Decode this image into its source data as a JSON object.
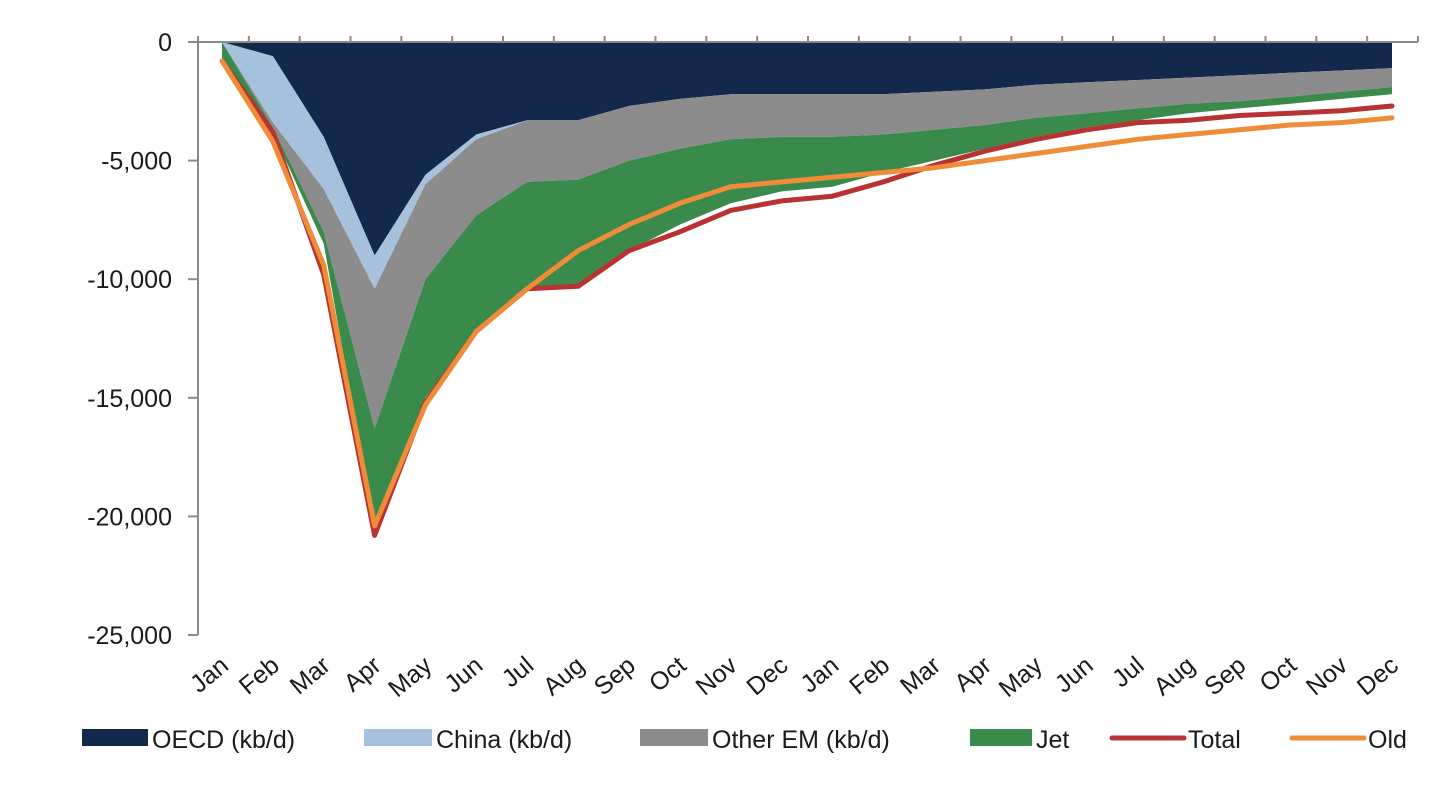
{
  "chart_data": {
    "type": "area",
    "title": "",
    "xlabel": "",
    "ylabel": "",
    "ylim": [
      -25000,
      0
    ],
    "yticks": [
      0,
      -5000,
      -10000,
      -15000,
      -20000,
      -25000
    ],
    "ytick_labels": [
      "0",
      "-5,000",
      "-10,000",
      "-15,000",
      "-20,000",
      "-25,000"
    ],
    "categories": [
      "Jan",
      "Feb",
      "Mar",
      "Apr",
      "May",
      "Jun",
      "Jul",
      "Aug",
      "Sep",
      "Oct",
      "Nov",
      "Dec",
      "Jan",
      "Feb",
      "Mar",
      "Apr",
      "May",
      "Jun",
      "Jul",
      "Aug",
      "Sep",
      "Oct",
      "Nov",
      "Dec"
    ],
    "grid": false,
    "legend_position": "bottom",
    "stacked_series": [
      {
        "name": "OECD (kb/d)",
        "color": "#13294b",
        "values": [
          0,
          -600,
          -4000,
          -9000,
          -5600,
          -3900,
          -3300,
          -3300,
          -2700,
          -2400,
          -2200,
          -2200,
          -2200,
          -2200,
          -2100,
          -2000,
          -1800,
          -1700,
          -1600,
          -1500,
          -1400,
          -1300,
          -1200,
          -1100
        ]
      },
      {
        "name": "China (kb/d)",
        "color": "#a6c1dc",
        "values": [
          0,
          -2800,
          -2200,
          -1400,
          -400,
          -200,
          0,
          0,
          0,
          0,
          0,
          0,
          0,
          0,
          0,
          0,
          0,
          0,
          0,
          0,
          0,
          0,
          0,
          0
        ]
      },
      {
        "name": "Other EM (kb/d)",
        "color": "#8c8c8c",
        "values": [
          0,
          -200,
          -1800,
          -5900,
          -4000,
          -3200,
          -2600,
          -2500,
          -2300,
          -2100,
          -1900,
          -1800,
          -1800,
          -1700,
          -1600,
          -1500,
          -1400,
          -1300,
          -1200,
          -1100,
          -1100,
          -1000,
          -900,
          -800
        ]
      },
      {
        "name": "Jet",
        "color": "#3a8a4c",
        "values": [
          -800,
          -200,
          -500,
          -4300,
          -5000,
          -4900,
          -4600,
          -4500,
          -3800,
          -3200,
          -2700,
          -2300,
          -2100,
          -1600,
          -1300,
          -1000,
          -800,
          -600,
          -500,
          -400,
          -300,
          -300,
          -300,
          -300
        ]
      }
    ],
    "line_series": [
      {
        "name": "Total",
        "color": "#b83232",
        "values": [
          -800,
          -3800,
          -9800,
          -20800,
          -15200,
          -12200,
          -10400,
          -10300,
          -8800,
          -8000,
          -7100,
          -6700,
          -6500,
          -5900,
          -5200,
          -4600,
          -4100,
          -3700,
          -3400,
          -3300,
          -3100,
          -3000,
          -2900,
          -2700
        ]
      },
      {
        "name": "Old",
        "color": "#ef8c3a",
        "values": [
          -800,
          -4200,
          -9400,
          -20400,
          -15300,
          -12200,
          -10400,
          -8800,
          -7700,
          -6800,
          -6100,
          -5900,
          -5700,
          -5500,
          -5300,
          -5000,
          -4700,
          -4400,
          -4100,
          -3900,
          -3700,
          -3500,
          -3400,
          -3200
        ]
      }
    ]
  }
}
